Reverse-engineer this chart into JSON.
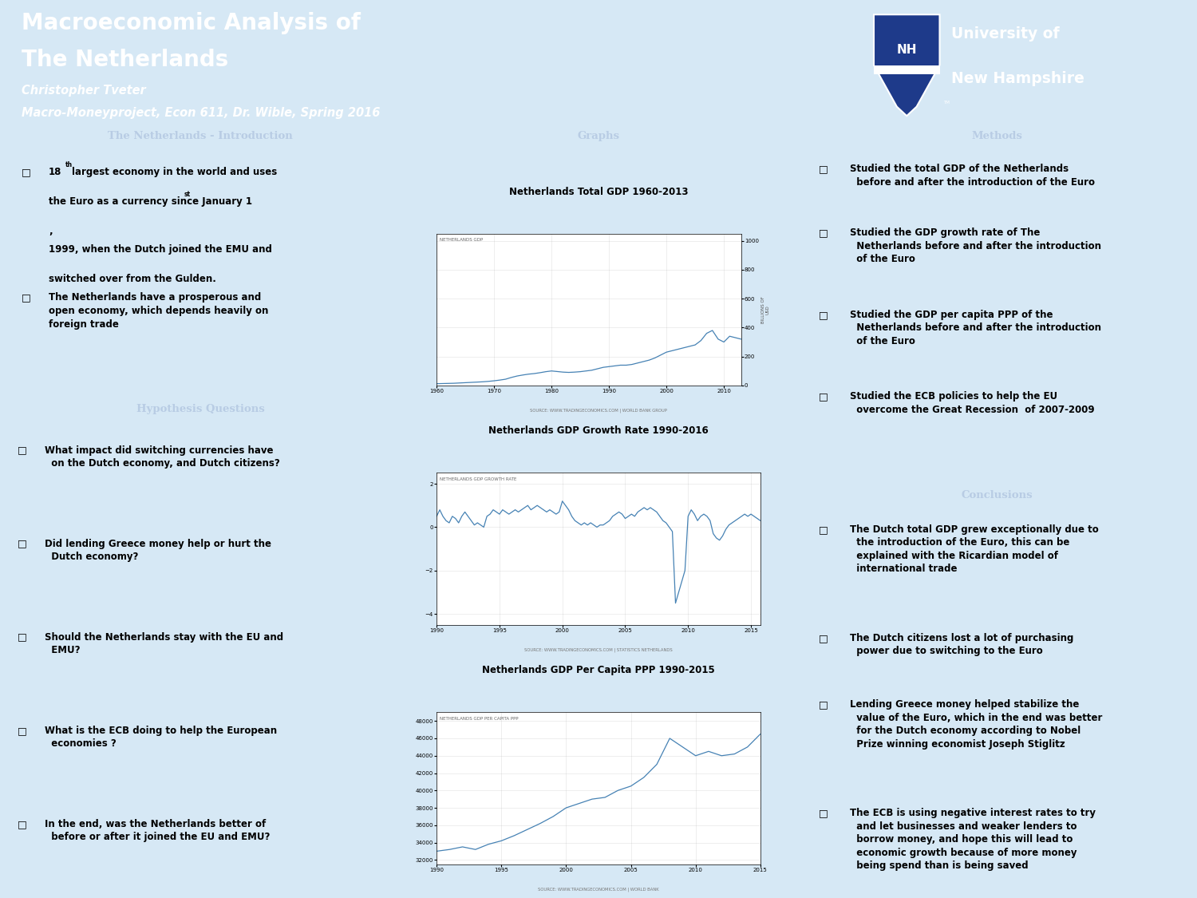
{
  "title_line1": "Macroeconomic Analysis of",
  "title_line2": "The Netherlands",
  "author": "Christopher Tveter",
  "course": "Macro-Moneyproject, Econ 611, Dr. Wible, Spring 2016",
  "header_bg": "#0e2a5e",
  "body_bg": "#d6e8f5",
  "section_bg": "#1a3560",
  "panel_bg": "#ddeaf7",
  "graph_bg": "#e8f2fb",
  "section_text_color": "#b8cce4",
  "intro_title": "The Netherlands - Introduction",
  "intro_bullet1a": "18",
  "intro_bullet1b": "th",
  "intro_bullet1c": " largest economy in the world and uses\n  the Euro as a currency since January 1",
  "intro_bullet1d": "st",
  "intro_bullet1e": ",\n  1999, when the Dutch joined the EMU and\n  switched over from the Gulden.",
  "intro_bullet2": "The Netherlands have a prosperous and\n  open economy, which depends heavily on\n  foreign trade",
  "hypo_title": "Hypothesis Questions",
  "hypo_bullets": [
    "What impact did switching currencies have\n  on the Dutch economy, and Dutch citizens?",
    "Did lending Greece money help or hurt the\n  Dutch economy?",
    "Should the Netherlands stay with the EU and\n  EMU?",
    "What is the ECB doing to help the European\n  economies ?",
    "In the end, was the Netherlands better of\n  before or after it joined the EU and EMU?"
  ],
  "graphs_title": "Graphs",
  "graph1_title": "Netherlands Total GDP 1960-2013",
  "graph1_subtitle": "NETHERLANDS GDP",
  "graph1_source": "SOURCE: WWW.TRADINGECONOMICS.COM | WORLD BANK GROUP",
  "graph2_title": "Netherlands GDP Growth Rate 1990-2016",
  "graph2_subtitle": "NETHERLANDS GDP GROWTH RATE",
  "graph2_source": "SOURCE: WWW.TRADINGECONOMICS.COM | STATISTICS NETHERLANDS",
  "graph3_title": "Netherlands GDP Per Capita PPP 1990-2015",
  "graph3_subtitle": "NETHERLANDS GDP PER CAPITA PPP",
  "graph3_source": "SOURCE: WWW.TRADINGECONOMICS.COM | WORLD BANK",
  "methods_title": "Methods",
  "methods_bullets": [
    "Studied the total GDP of the Netherlands\n  before and after the introduction of the Euro",
    "Studied the GDP growth rate of The\n  Netherlands before and after the introduction\n  of the Euro",
    "Studied the GDP per capita PPP of the\n  Netherlands before and after the introduction\n  of the Euro",
    "Studied the ECB policies to help the EU\n  overcome the Great Recession  of 2007-2009"
  ],
  "conclusions_title": "Conclusions",
  "conclusions_bullets": [
    "The Dutch total GDP grew exceptionally due to\n  the introduction of the Euro, this can be\n  explained with the Ricardian model of\n  international trade",
    "The Dutch citizens lost a lot of purchasing\n  power due to switching to the Euro",
    "Lending Greece money helped stabilize the\n  value of the Euro, which in the end was better\n  for the Dutch economy according to Nobel\n  Prize winning economist Joseph Stiglitz",
    "The ECB is using negative interest rates to try\n  and let businesses and weaker lenders to\n  borrow money, and hope this will lead to\n  economic growth because of more money\n  being spend than is being saved"
  ],
  "gdp_years": [
    1960,
    1961,
    1962,
    1963,
    1964,
    1965,
    1966,
    1967,
    1968,
    1969,
    1970,
    1971,
    1972,
    1973,
    1974,
    1975,
    1976,
    1977,
    1978,
    1979,
    1980,
    1981,
    1982,
    1983,
    1984,
    1985,
    1986,
    1987,
    1988,
    1989,
    1990,
    1991,
    1992,
    1993,
    1994,
    1995,
    1996,
    1997,
    1998,
    1999,
    2000,
    2001,
    2002,
    2003,
    2004,
    2005,
    2006,
    2007,
    2008,
    2009,
    2010,
    2011,
    2012,
    2013
  ],
  "gdp_values": [
    12,
    13,
    14,
    15,
    17,
    19,
    21,
    23,
    25,
    28,
    32,
    37,
    43,
    55,
    65,
    72,
    78,
    82,
    88,
    95,
    100,
    96,
    92,
    90,
    92,
    95,
    100,
    105,
    115,
    125,
    130,
    135,
    140,
    140,
    145,
    155,
    165,
    175,
    190,
    210,
    230,
    240,
    250,
    260,
    270,
    280,
    310,
    360,
    380,
    320,
    300,
    340,
    330,
    320
  ],
  "growth_years_q": [
    1990.0,
    1990.25,
    1990.5,
    1990.75,
    1991.0,
    1991.25,
    1991.5,
    1991.75,
    1992.0,
    1992.25,
    1992.5,
    1992.75,
    1993.0,
    1993.25,
    1993.5,
    1993.75,
    1994.0,
    1994.25,
    1994.5,
    1994.75,
    1995.0,
    1995.25,
    1995.5,
    1995.75,
    1996.0,
    1996.25,
    1996.5,
    1996.75,
    1997.0,
    1997.25,
    1997.5,
    1997.75,
    1998.0,
    1998.25,
    1998.5,
    1998.75,
    1999.0,
    1999.25,
    1999.5,
    1999.75,
    2000.0,
    2000.25,
    2000.5,
    2000.75,
    2001.0,
    2001.25,
    2001.5,
    2001.75,
    2002.0,
    2002.25,
    2002.5,
    2002.75,
    2003.0,
    2003.25,
    2003.5,
    2003.75,
    2004.0,
    2004.25,
    2004.5,
    2004.75,
    2005.0,
    2005.25,
    2005.5,
    2005.75,
    2006.0,
    2006.25,
    2006.5,
    2006.75,
    2007.0,
    2007.25,
    2007.5,
    2007.75,
    2008.0,
    2008.25,
    2008.5,
    2008.75,
    2009.0,
    2009.25,
    2009.5,
    2009.75,
    2010.0,
    2010.25,
    2010.5,
    2010.75,
    2011.0,
    2011.25,
    2011.5,
    2011.75,
    2012.0,
    2012.25,
    2012.5,
    2012.75,
    2013.0,
    2013.25,
    2013.5,
    2013.75,
    2014.0,
    2014.25,
    2014.5,
    2014.75,
    2015.0,
    2015.25,
    2015.5,
    2015.75
  ],
  "growth_values_q": [
    0.5,
    0.8,
    0.5,
    0.3,
    0.2,
    0.5,
    0.4,
    0.2,
    0.5,
    0.7,
    0.5,
    0.3,
    0.1,
    0.2,
    0.1,
    0.0,
    0.5,
    0.6,
    0.8,
    0.7,
    0.6,
    0.8,
    0.7,
    0.6,
    0.7,
    0.8,
    0.7,
    0.8,
    0.9,
    1.0,
    0.8,
    0.9,
    1.0,
    0.9,
    0.8,
    0.7,
    0.8,
    0.7,
    0.6,
    0.7,
    1.2,
    1.0,
    0.8,
    0.5,
    0.3,
    0.2,
    0.1,
    0.2,
    0.1,
    0.2,
    0.1,
    0.0,
    0.1,
    0.1,
    0.2,
    0.3,
    0.5,
    0.6,
    0.7,
    0.6,
    0.4,
    0.5,
    0.6,
    0.5,
    0.7,
    0.8,
    0.9,
    0.8,
    0.9,
    0.8,
    0.7,
    0.5,
    0.3,
    0.2,
    0.0,
    -0.2,
    -3.5,
    -3.0,
    -2.5,
    -2.0,
    0.5,
    0.8,
    0.6,
    0.3,
    0.5,
    0.6,
    0.5,
    0.3,
    -0.3,
    -0.5,
    -0.6,
    -0.4,
    -0.1,
    0.1,
    0.2,
    0.3,
    0.4,
    0.5,
    0.6,
    0.5,
    0.6,
    0.5,
    0.4,
    0.3
  ],
  "percap_years": [
    1990,
    1991,
    1992,
    1993,
    1994,
    1995,
    1996,
    1997,
    1998,
    1999,
    2000,
    2001,
    2002,
    2003,
    2004,
    2005,
    2006,
    2007,
    2008,
    2009,
    2010,
    2011,
    2012,
    2013,
    2014,
    2015
  ],
  "percap_values": [
    33000,
    33200,
    33500,
    33200,
    33800,
    34200,
    34800,
    35500,
    36200,
    37000,
    38000,
    38500,
    39000,
    39200,
    40000,
    40500,
    41500,
    43000,
    46000,
    45000,
    44000,
    44500,
    44000,
    44200,
    45000,
    46500
  ]
}
